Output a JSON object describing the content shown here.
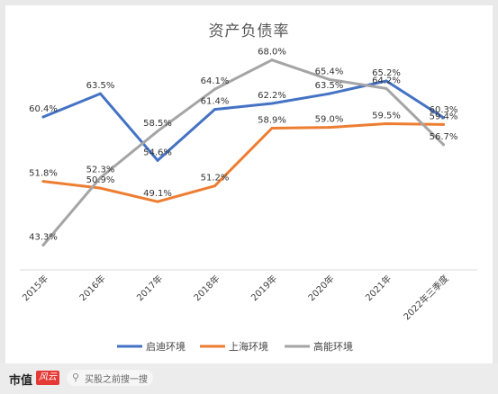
{
  "chart_data": {
    "type": "line",
    "title": "资产负债率",
    "categories": [
      "2015年",
      "2016年",
      "2017年",
      "2018年",
      "2019年",
      "2020年",
      "2021年",
      "2022年三季度"
    ],
    "ylim": [
      40,
      70
    ],
    "grid": false,
    "legend_position": "bottom",
    "series": [
      {
        "name": "启迪环境",
        "color": "#4472c4",
        "values": [
          60.4,
          63.5,
          54.6,
          61.4,
          62.2,
          63.5,
          65.2,
          60.3
        ],
        "labels": [
          "60.4%",
          "63.5%",
          "54.6%",
          "61.4%",
          "62.2%",
          "63.5%",
          "65.2%",
          "60.3%"
        ]
      },
      {
        "name": "上海环境",
        "color": "#ed7d31",
        "values": [
          51.8,
          50.9,
          49.1,
          51.2,
          58.9,
          59.0,
          59.5,
          59.4
        ],
        "labels": [
          "51.8%",
          "50.9%",
          "49.1%",
          "51.2%",
          "58.9%",
          "59.0%",
          "59.5%",
          "59.4%"
        ]
      },
      {
        "name": "高能环境",
        "color": "#a5a5a5",
        "values": [
          43.3,
          52.3,
          58.5,
          64.1,
          68.0,
          65.4,
          64.2,
          56.7
        ],
        "labels": [
          "43.3%",
          "52.3%",
          "58.5%",
          "64.1%",
          "68.0%",
          "65.4%",
          "64.2%",
          "56.7%"
        ]
      }
    ]
  },
  "footer": {
    "brand": "市值",
    "badge": "风云",
    "search_placeholder": "买股之前搜一搜",
    "search_icon": "search-icon"
  }
}
